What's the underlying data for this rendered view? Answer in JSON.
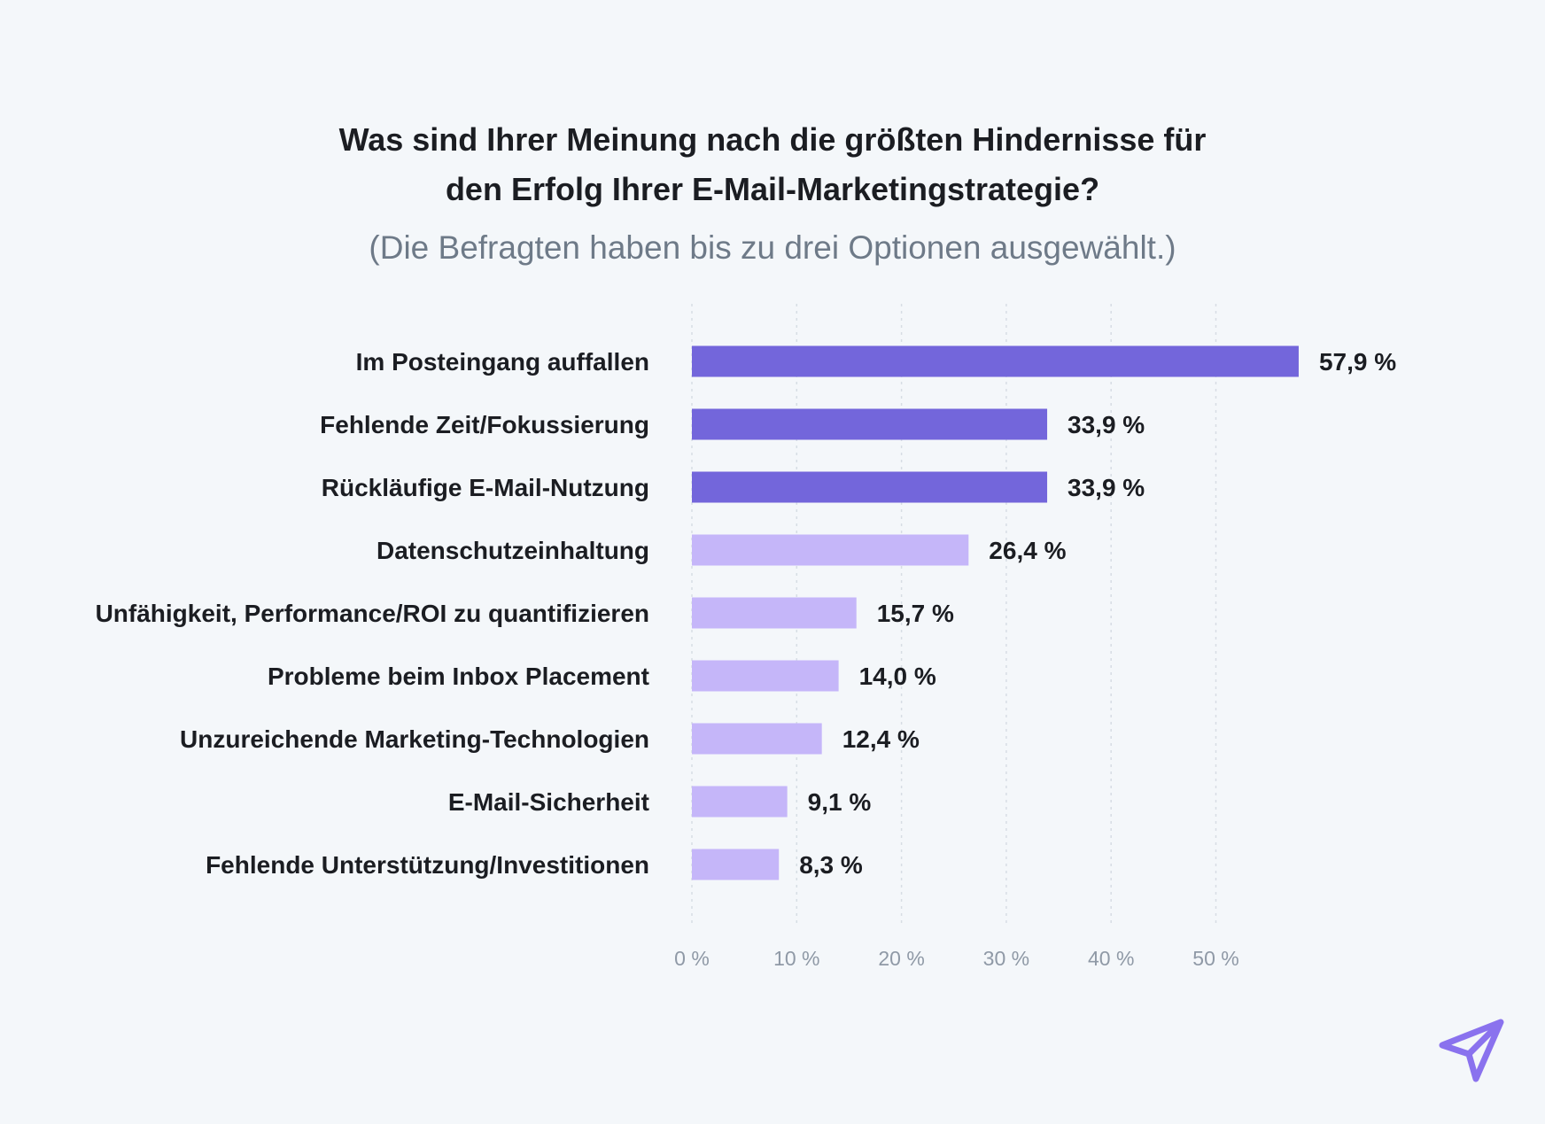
{
  "chart_data": {
    "type": "bar",
    "orientation": "horizontal",
    "title_lines": [
      "Was sind Ihrer Meinung nach die größten Hindernisse für",
      "den Erfolg Ihrer E-Mail-Marketingstrategie?"
    ],
    "subtitle": "(Die Befragten haben bis zu drei Optionen ausgewählt.)",
    "categories": [
      "Im Posteingang auffallen",
      "Fehlende Zeit/Fokussierung",
      "Rückläufige E-Mail-Nutzung",
      "Datenschutzeinhaltung",
      "Unfähigkeit, Performance/ROI zu quantifizieren",
      "Probleme beim Inbox Placement",
      "Unzureichende Marketing-Technologien",
      "E-Mail-Sicherheit",
      "Fehlende Unterstützung/Investitionen"
    ],
    "values": [
      57.9,
      33.9,
      33.9,
      26.4,
      15.7,
      14.0,
      12.4,
      9.1,
      8.3
    ],
    "value_labels": [
      "57,9 %",
      "33,9 %",
      "33,9 %",
      "26,4 %",
      "15,7 %",
      "14,0 %",
      "12,4 %",
      "9,1 %",
      "8,3 %"
    ],
    "highlight_count": 3,
    "xticks": [
      0,
      10,
      20,
      30,
      40,
      50
    ],
    "xtick_labels": [
      "0 %",
      "10 %",
      "20 %",
      "30 %",
      "40 %",
      "50 %"
    ],
    "xlim": [
      0,
      60
    ],
    "grid": true
  },
  "colors": {
    "highlight": "#7366db",
    "normal": "#c5b6f9",
    "background": "#f4f7fa",
    "text": "#1b1d22",
    "muted": "#8f99a6",
    "logo": "#8a72ee"
  },
  "logo": {
    "icon": "paper-plane-icon"
  }
}
